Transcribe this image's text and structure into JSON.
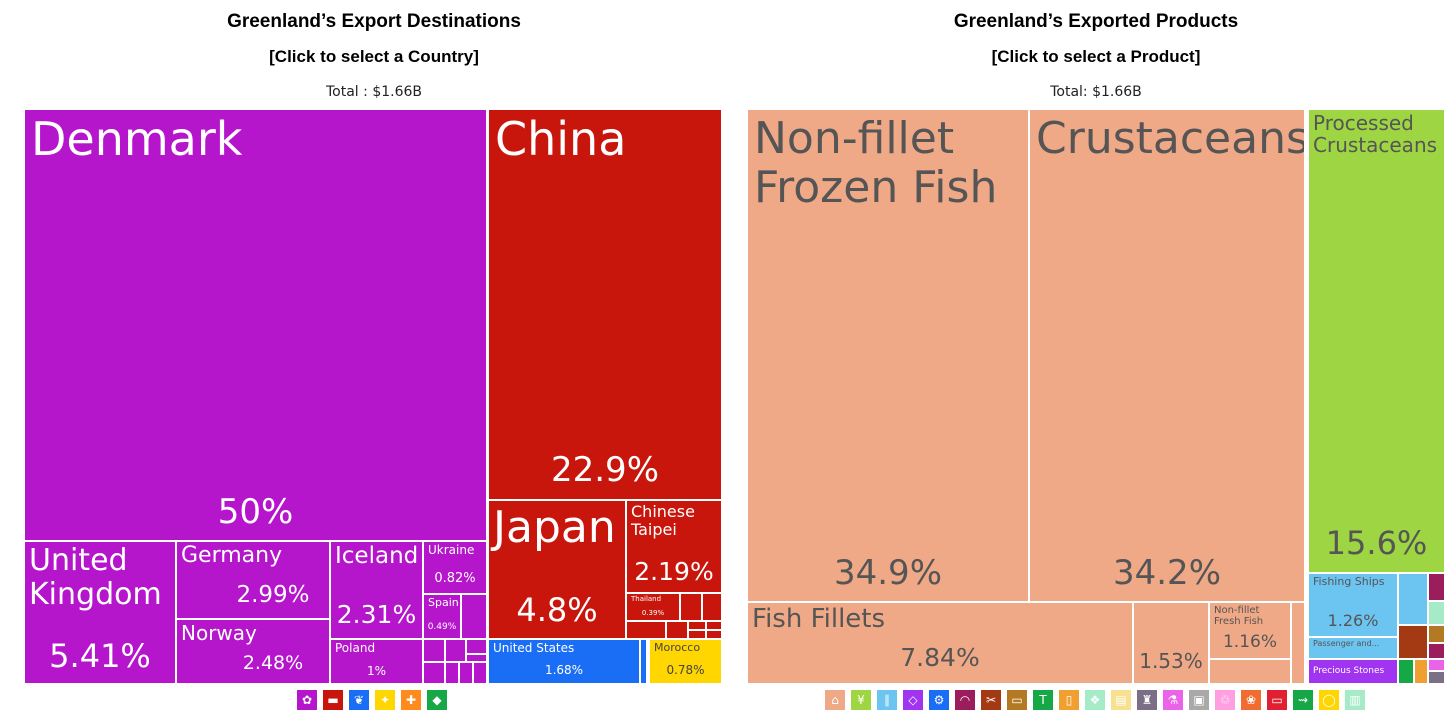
{
  "chart_data": [
    {
      "type": "treemap",
      "title": "Greenland’s Export Destinations",
      "subtitle": "[Click to select a Country]",
      "total_label": "Total : $1.66B",
      "items": [
        {
          "name": "Denmark",
          "label": "50%",
          "value": 50,
          "color": "#b515cb"
        },
        {
          "name": "China",
          "label": "22.9%",
          "value": 22.9,
          "color": "#c8160d"
        },
        {
          "name": "United Kingdom",
          "label": "5.41%",
          "value": 5.41,
          "color": "#b515cb"
        },
        {
          "name": "Japan",
          "label": "4.8%",
          "value": 4.8,
          "color": "#c8160d"
        },
        {
          "name": "Germany",
          "label": "2.99%",
          "value": 2.99,
          "color": "#b515cb"
        },
        {
          "name": "Norway",
          "label": "2.48%",
          "value": 2.48,
          "color": "#b515cb"
        },
        {
          "name": "Iceland",
          "label": "2.31%",
          "value": 2.31,
          "color": "#b515cb"
        },
        {
          "name": "Chinese Taipei",
          "label": "2.19%",
          "value": 2.19,
          "color": "#c8160d"
        },
        {
          "name": "United States",
          "label": "1.68%",
          "value": 1.68,
          "color": "#1a6ef5"
        },
        {
          "name": "Poland",
          "label": "1%",
          "value": 1,
          "color": "#b515cb"
        },
        {
          "name": "Ukraine",
          "label": "0.82%",
          "value": 0.82,
          "color": "#b515cb"
        },
        {
          "name": "Morocco",
          "label": "0.78%",
          "value": 0.78,
          "color": "#ffd600"
        },
        {
          "name": "Spain",
          "label": "0.49%",
          "value": 0.49,
          "color": "#b515cb"
        },
        {
          "name": "Thailand",
          "label": "0.39%",
          "value": 0.39,
          "color": "#c8160d"
        }
      ]
    },
    {
      "type": "treemap",
      "title": "Greenland’s Exported Products",
      "subtitle": "[Click to select a Product]",
      "total_label": "Total: $1.66B",
      "items": [
        {
          "name": "Non-fillet Frozen Fish",
          "label": "34.9%",
          "value": 34.9,
          "color": "#f0a987"
        },
        {
          "name": "Crustaceans",
          "label": "34.2%",
          "value": 34.2,
          "color": "#f0a987"
        },
        {
          "name": "Processed Crustaceans",
          "label": "15.6%",
          "value": 15.6,
          "color": "#9ed543"
        },
        {
          "name": "Fish Fillets",
          "label": "7.84%",
          "value": 7.84,
          "color": "#f0a987"
        },
        {
          "name": "",
          "label": "1.53%",
          "value": 1.53,
          "color": "#f0a987"
        },
        {
          "name": "Fishing Ships",
          "label": "1.26%",
          "value": 1.26,
          "color": "#6cc4f0"
        },
        {
          "name": "Non-fillet Fresh Fish",
          "label": "1.16%",
          "value": 1.16,
          "color": "#f0a987"
        },
        {
          "name": "Passenger and...",
          "label": "",
          "value": null,
          "color": "#6cc4f0"
        },
        {
          "name": "Precious Stones",
          "label": "",
          "value": null,
          "color": "#a034f0"
        }
      ]
    }
  ],
  "legends": {
    "regions": [
      {
        "icon": "europe-icon",
        "color": "#b515cb",
        "glyph": "✿"
      },
      {
        "icon": "asia-icon",
        "color": "#c8160d",
        "glyph": "▬"
      },
      {
        "icon": "north-america-icon",
        "color": "#1a6ef5",
        "glyph": "❦"
      },
      {
        "icon": "africa-icon",
        "color": "#ffd600",
        "glyph": "✦"
      },
      {
        "icon": "oceania-icon",
        "color": "#ff8a1e",
        "glyph": "✚"
      },
      {
        "icon": "south-america-icon",
        "color": "#16a846",
        "glyph": "◆"
      }
    ],
    "sectors": [
      {
        "icon": "animal-products-icon",
        "color": "#f0a987",
        "glyph": "⌂"
      },
      {
        "icon": "vegetable-products-icon",
        "color": "#9ed543",
        "glyph": "¥"
      },
      {
        "icon": "foodstuffs-icon",
        "color": "#6cc4f0",
        "glyph": "∥"
      },
      {
        "icon": "mineral-products-icon",
        "color": "#a034f0",
        "glyph": "◇"
      },
      {
        "icon": "chemical-products-icon",
        "color": "#1a6ef5",
        "glyph": "⚙"
      },
      {
        "icon": "plastics-rubbers-icon",
        "color": "#9b1d5c",
        "glyph": "◠"
      },
      {
        "icon": "animal-hides-icon",
        "color": "#a33a14",
        "glyph": "✂"
      },
      {
        "icon": "wood-products-icon",
        "color": "#b37a23",
        "glyph": "▭"
      },
      {
        "icon": "textiles-icon",
        "color": "#16a846",
        "glyph": "T"
      },
      {
        "icon": "footwear-headwear-icon",
        "color": "#f0a030",
        "glyph": "▯"
      },
      {
        "icon": "stone-glass-icon",
        "color": "#a6ebc7",
        "glyph": "❖"
      },
      {
        "icon": "precious-metals-icon",
        "color": "#f7e08e",
        "glyph": "▤"
      },
      {
        "icon": "metals-icon",
        "color": "#7a6f85",
        "glyph": "♜"
      },
      {
        "icon": "machines-icon",
        "color": "#ea63e8",
        "glyph": "⚗"
      },
      {
        "icon": "transportation-icon",
        "color": "#a9a9a9",
        "glyph": "▣"
      },
      {
        "icon": "instruments-icon",
        "color": "#ff9ee0",
        "glyph": "♲"
      },
      {
        "icon": "weapons-icon",
        "color": "#f06c30",
        "glyph": "❀"
      },
      {
        "icon": "miscellaneous-icon",
        "color": "#e02030",
        "glyph": "▭"
      },
      {
        "icon": "arts-antiques-icon",
        "color": "#16a846",
        "glyph": "⇝"
      },
      {
        "icon": "unspecified-icon",
        "color": "#ffd600",
        "glyph": "◯"
      },
      {
        "icon": "other-icon",
        "color": "#a6ebc7",
        "glyph": "▥"
      }
    ]
  }
}
